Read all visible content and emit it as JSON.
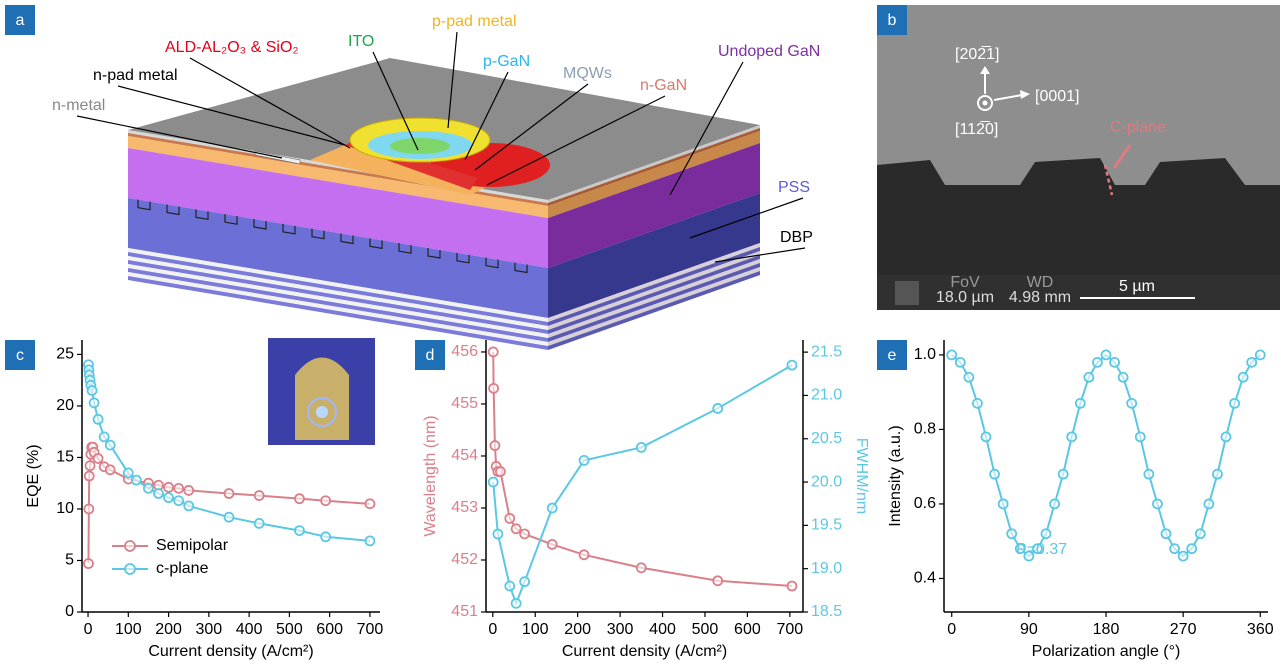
{
  "panel_labels": [
    "a",
    "b",
    "c",
    "d",
    "e"
  ],
  "diagram": {
    "labels": [
      "ALD-AL₂O₃ & SiO₂",
      "ITO",
      "p-pad metal",
      "p-GaN",
      "MQWs",
      "n-GaN",
      "Undoped GaN",
      "n-pad metal",
      "n-metal",
      "PSS",
      "DBP"
    ]
  },
  "sem": {
    "directions": [
      "[202̅1]",
      "[0001]",
      "[112̅0]"
    ],
    "plane_label": "C-plane",
    "fov_label": "FoV",
    "fov": "18.0 µm",
    "wd_label": "WD",
    "wd": "4.98 mm",
    "scale_bar": "5 µm"
  },
  "chart_data": [
    {
      "type": "line",
      "xlabel": "Current density (A/cm²)",
      "ylabel": "EQE (%)",
      "xlim": [
        -15,
        725
      ],
      "xticks": [
        0,
        100,
        200,
        300,
        400,
        500,
        600,
        700
      ],
      "ylim": [
        0,
        26.4
      ],
      "yticks": [
        0,
        5,
        10,
        15,
        20,
        25
      ],
      "legend": "lower left",
      "series": [
        {
          "name": "Semipolar",
          "color": "#d9808a",
          "x": [
            1,
            2,
            3,
            5,
            7,
            9,
            12,
            15,
            25,
            40,
            55,
            100,
            150,
            175,
            200,
            225,
            250,
            350,
            425,
            525,
            590,
            700
          ],
          "values": [
            4.7,
            10,
            13.2,
            14.2,
            15.3,
            16,
            16,
            15.5,
            14.9,
            14.1,
            13.8,
            12.9,
            12.5,
            12.3,
            12.1,
            12,
            11.8,
            11.5,
            11.3,
            11,
            10.8,
            10.5
          ]
        },
        {
          "name": "c-plane",
          "color": "#5bc8e3",
          "x": [
            1,
            2,
            3,
            5,
            7,
            10,
            15,
            25,
            40,
            55,
            100,
            120,
            150,
            175,
            200,
            225,
            250,
            350,
            425,
            525,
            590,
            700
          ],
          "values": [
            24,
            23.5,
            23,
            22.5,
            22,
            21.5,
            20.3,
            18.7,
            17,
            16.2,
            13.5,
            12.8,
            12,
            11.5,
            11.1,
            10.8,
            10.3,
            9.2,
            8.6,
            7.9,
            7.3,
            6.9
          ]
        }
      ]
    },
    {
      "type": "line",
      "xlabel": "Current density (A/cm²)",
      "ylabel": "Wavelength (nm)",
      "y2label": "FWHM/nm",
      "xlim": [
        -16,
        731
      ],
      "xticks": [
        0,
        100,
        200,
        300,
        400,
        500,
        600,
        700
      ],
      "ylim": [
        451,
        456.23
      ],
      "yticks": [
        451,
        452,
        453,
        454,
        455,
        456
      ],
      "y2lim": [
        18.5,
        21.64
      ],
      "y2ticks": [
        18.5,
        {
          "value": 19,
          "label": "19.0"
        },
        19.5,
        {
          "value": 20,
          "label": "20.0"
        },
        20.5,
        {
          "value": 21,
          "label": "21.0"
        },
        21.5
      ],
      "series": [
        {
          "color": "#d9808a",
          "x": [
            1,
            2,
            5,
            8,
            12,
            18,
            40,
            55,
            75,
            140,
            215,
            350,
            530,
            705
          ],
          "values": [
            456,
            455.3,
            454.2,
            453.8,
            453.7,
            453.7,
            452.8,
            452.6,
            452.5,
            452.3,
            452.1,
            451.85,
            451.6,
            451.5
          ]
        },
        {
          "color": "#5bc8e3",
          "axis": "y2",
          "x": [
            1,
            12,
            40,
            55,
            75,
            140,
            215,
            350,
            530,
            705
          ],
          "values": [
            20,
            19.4,
            18.8,
            18.6,
            18.85,
            19.7,
            20.25,
            20.4,
            20.85,
            21.35
          ]
        }
      ]
    },
    {
      "type": "line",
      "xlabel": "Polarization angle (°)",
      "ylabel": "Intensity (a.u.)",
      "annotation": "P=0.37",
      "xlim": [
        -9,
        369
      ],
      "xticks": [
        0,
        90,
        180,
        270,
        360
      ],
      "ylim": [
        0.31,
        1.04
      ],
      "yticks": [
        0.4,
        0.6,
        0.8,
        {
          "value": 1,
          "label": "1.0"
        }
      ],
      "series": [
        {
          "color": "#5bc8e3",
          "x": [
            0,
            10,
            20,
            30,
            40,
            50,
            60,
            70,
            80,
            90,
            100,
            110,
            120,
            130,
            140,
            150,
            160,
            170,
            180,
            190,
            200,
            210,
            220,
            230,
            240,
            250,
            260,
            270,
            280,
            290,
            300,
            310,
            320,
            330,
            340,
            350,
            360
          ],
          "values": [
            1.0,
            0.98,
            0.94,
            0.87,
            0.78,
            0.68,
            0.6,
            0.52,
            0.48,
            0.46,
            0.48,
            0.52,
            0.6,
            0.68,
            0.78,
            0.87,
            0.94,
            0.98,
            1.0,
            0.98,
            0.94,
            0.87,
            0.78,
            0.68,
            0.6,
            0.52,
            0.48,
            0.46,
            0.48,
            0.52,
            0.6,
            0.68,
            0.78,
            0.87,
            0.94,
            0.98,
            1.0
          ]
        }
      ]
    }
  ]
}
